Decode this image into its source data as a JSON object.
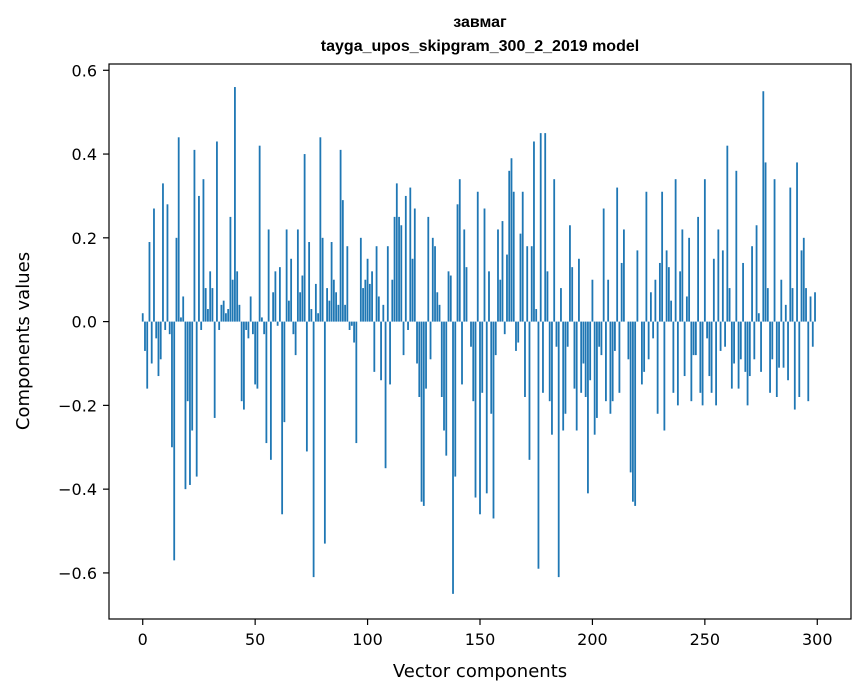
{
  "chart_data": {
    "type": "bar",
    "title": "завмаг",
    "subtitle": "tayga_upos_skipgram_300_2_2019 model",
    "xlabel": "Vector components",
    "ylabel": "Components values",
    "xlim": [
      -15,
      315
    ],
    "ylim": [
      -0.71,
      0.615
    ],
    "x_ticks": [
      0,
      50,
      100,
      150,
      200,
      250,
      300
    ],
    "y_ticks": [
      -0.6,
      -0.4,
      -0.2,
      0.0,
      0.2,
      0.4,
      0.6
    ],
    "x_tick_labels": [
      "0",
      "50",
      "100",
      "150",
      "200",
      "250",
      "300"
    ],
    "y_tick_labels": [
      "−0.6",
      "−0.4",
      "−0.2",
      "0.0",
      "0.2",
      "0.4",
      "0.6"
    ],
    "bar_color": "#1f77b4",
    "grid": false,
    "values": [
      0.02,
      -0.07,
      -0.16,
      0.19,
      -0.1,
      0.27,
      -0.04,
      -0.13,
      -0.09,
      0.33,
      -0.02,
      0.28,
      -0.03,
      -0.3,
      -0.57,
      0.2,
      0.44,
      0.01,
      0.06,
      -0.4,
      -0.19,
      -0.39,
      -0.26,
      0.41,
      -0.37,
      0.3,
      -0.02,
      0.34,
      0.08,
      0.03,
      0.12,
      0.08,
      -0.23,
      0.43,
      -0.02,
      0.04,
      0.05,
      0.02,
      0.03,
      0.25,
      0.1,
      0.56,
      0.12,
      0.04,
      -0.19,
      -0.21,
      -0.02,
      -0.04,
      0.06,
      -0.03,
      -0.15,
      -0.16,
      0.42,
      0.01,
      -0.03,
      -0.29,
      0.22,
      -0.33,
      0.07,
      0.12,
      -0.01,
      0.13,
      -0.46,
      -0.24,
      0.22,
      0.05,
      0.15,
      -0.03,
      -0.08,
      0.22,
      0.07,
      0.11,
      0.4,
      -0.31,
      0.19,
      0.03,
      -0.61,
      0.09,
      0.02,
      0.44,
      0.2,
      -0.53,
      0.08,
      0.05,
      0.19,
      0.1,
      0.07,
      0.04,
      0.41,
      0.29,
      0.04,
      0.18,
      -0.02,
      -0.01,
      -0.05,
      -0.29,
      0.0,
      0.2,
      0.08,
      0.1,
      0.15,
      0.09,
      0.12,
      -0.12,
      0.18,
      0.06,
      -0.14,
      0.04,
      -0.35,
      0.18,
      -0.15,
      0.1,
      0.25,
      0.33,
      0.25,
      0.23,
      -0.08,
      0.3,
      -0.02,
      0.32,
      0.15,
      0.27,
      -0.1,
      -0.18,
      -0.43,
      -0.44,
      -0.16,
      0.25,
      -0.09,
      0.2,
      0.18,
      0.07,
      0.04,
      -0.18,
      -0.26,
      -0.32,
      0.12,
      0.11,
      -0.65,
      -0.37,
      0.28,
      0.34,
      -0.15,
      0.22,
      0.13,
      0.0,
      -0.06,
      -0.19,
      -0.42,
      0.31,
      -0.46,
      -0.17,
      0.27,
      -0.41,
      0.12,
      -0.22,
      -0.47,
      -0.08,
      0.22,
      0.1,
      0.24,
      -0.03,
      0.16,
      0.36,
      0.39,
      0.31,
      -0.07,
      -0.05,
      0.21,
      0.31,
      -0.18,
      0.18,
      -0.33,
      0.18,
      0.43,
      0.03,
      -0.59,
      0.45,
      -0.17,
      0.45,
      0.12,
      -0.19,
      -0.27,
      0.34,
      -0.06,
      -0.61,
      0.08,
      -0.26,
      -0.22,
      -0.06,
      0.23,
      0.13,
      -0.16,
      -0.26,
      0.15,
      -0.17,
      -0.1,
      -0.18,
      -0.41,
      -0.14,
      0.1,
      -0.27,
      -0.23,
      -0.06,
      -0.08,
      0.27,
      -0.19,
      0.1,
      -0.22,
      -0.19,
      -0.07,
      0.32,
      -0.17,
      0.14,
      0.22,
      0.0,
      -0.09,
      -0.36,
      -0.43,
      -0.44,
      0.17,
      0.0,
      -0.15,
      -0.12,
      0.31,
      -0.09,
      0.07,
      -0.04,
      0.1,
      -0.22,
      0.14,
      0.31,
      -0.26,
      0.17,
      0.13,
      0.05,
      -0.17,
      0.34,
      -0.2,
      0.12,
      0.22,
      -0.13,
      0.06,
      0.2,
      -0.19,
      -0.08,
      -0.08,
      0.25,
      -0.17,
      -0.2,
      0.34,
      -0.04,
      -0.13,
      -0.17,
      0.15,
      -0.2,
      0.22,
      -0.07,
      0.17,
      -0.06,
      0.42,
      0.08,
      -0.16,
      -0.1,
      0.36,
      -0.16,
      -0.09,
      0.14,
      -0.12,
      -0.2,
      -0.13,
      0.18,
      -0.09,
      0.23,
      0.02,
      -0.12,
      0.55,
      0.38,
      0.08,
      -0.17,
      -0.09,
      0.34,
      -0.18,
      -0.11,
      0.1,
      -0.11,
      0.04,
      -0.14,
      0.32,
      0.08,
      -0.21,
      0.38,
      -0.18,
      0.17,
      0.2,
      0.08,
      -0.19,
      0.06,
      -0.06,
      0.07
    ]
  }
}
